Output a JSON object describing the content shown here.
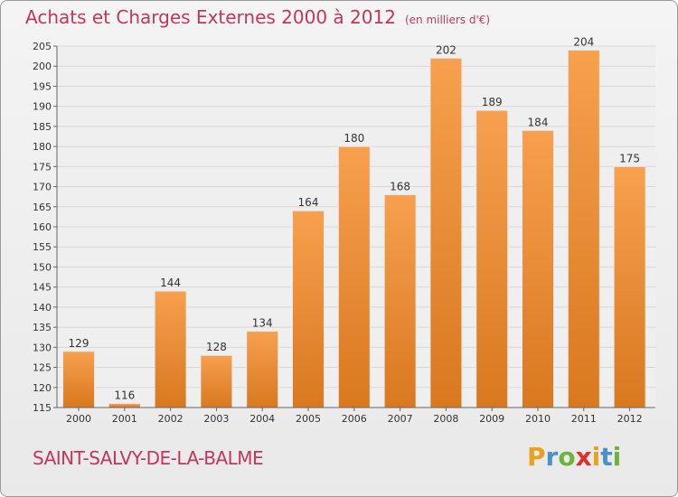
{
  "header": {
    "title": "Achats et Charges Externes 2000 à 2012",
    "unit": "(en milliers d'€)"
  },
  "footer": {
    "place": "SAINT-SALVY-DE-LA-BALME",
    "logo_letters": [
      "P",
      "r",
      "o",
      "x",
      "i",
      "t",
      "i"
    ],
    "logo_colors": [
      "#e9a21f",
      "#4a90c9",
      "#6cb33f",
      "#e0322a",
      "#e9a21f",
      "#4a90c9",
      "#6cb33f"
    ]
  },
  "chart_data": {
    "type": "bar",
    "categories": [
      "2000",
      "2001",
      "2002",
      "2003",
      "2004",
      "2005",
      "2006",
      "2007",
      "2008",
      "2009",
      "2010",
      "2011",
      "2012"
    ],
    "values": [
      129,
      116,
      144,
      128,
      134,
      164,
      180,
      168,
      202,
      189,
      184,
      204,
      175
    ],
    "ylim": [
      115,
      205
    ],
    "yticks": [
      115,
      120,
      125,
      130,
      135,
      140,
      145,
      150,
      155,
      160,
      165,
      170,
      175,
      180,
      185,
      190,
      195,
      200,
      205
    ],
    "grid": true,
    "bar_color_top": "#f7a04e",
    "bar_color_bottom": "#d9781f"
  }
}
